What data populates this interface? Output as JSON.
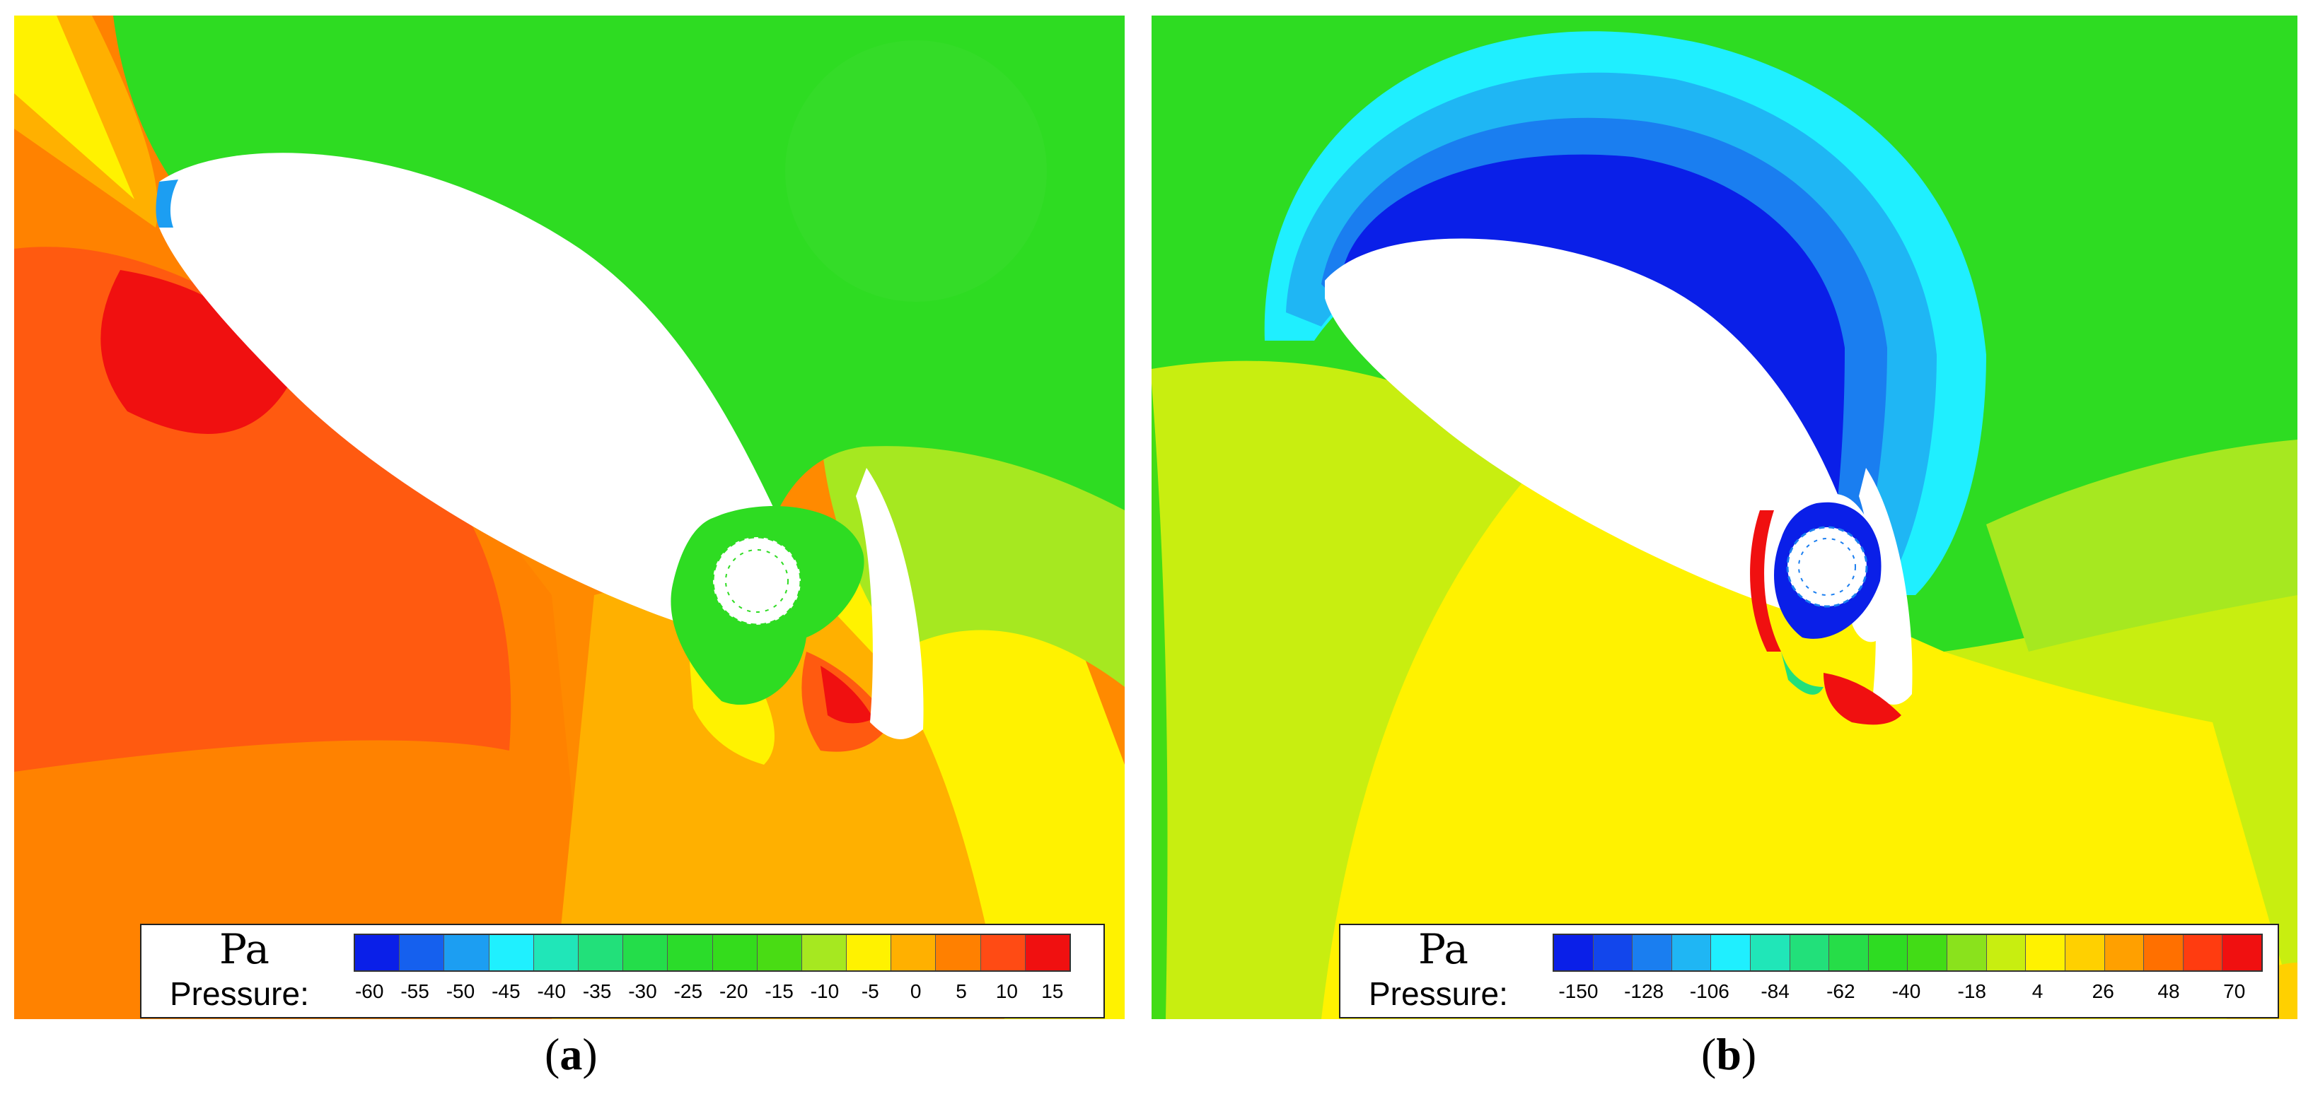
{
  "panels": [
    {
      "id": "a",
      "caption_letter": "a",
      "unit": "Pa",
      "label": "Pressure:",
      "ticks": [
        "-60",
        "-55",
        "-50",
        "-45",
        "-40",
        "-35",
        "-30",
        "-25",
        "-20",
        "-15",
        "-10",
        "-5",
        "0",
        "5",
        "10",
        "15"
      ],
      "colors": [
        "#0a1fe8",
        "#1560ee",
        "#1c9ef2",
        "#1ff0ff",
        "#20e6b8",
        "#22e07a",
        "#24dd4a",
        "#2bdc2a",
        "#34dc1c",
        "#49dc14",
        "#a6e820",
        "#fff200",
        "#ffb000",
        "#ff8000",
        "#ff4b14",
        "#f01010"
      ]
    },
    {
      "id": "b",
      "caption_letter": "b",
      "unit": "Pa",
      "label": "Pressure:",
      "ticks": [
        "-150",
        "-128",
        "-106",
        "-84",
        "-62",
        "-40",
        "-18",
        "4",
        "26",
        "48",
        "70"
      ],
      "colors": [
        "#0a1fe8",
        "#1246ec",
        "#1a7ef0",
        "#1fb6f4",
        "#1fefff",
        "#20e6b8",
        "#22e07a",
        "#26dd48",
        "#2edc22",
        "#42dc16",
        "#8ae21c",
        "#c8ee10",
        "#fff200",
        "#ffd000",
        "#ffa000",
        "#ff7000",
        "#ff3c10",
        "#f01010"
      ]
    }
  ],
  "caption_paren_open": "(",
  "caption_paren_close": ")"
}
